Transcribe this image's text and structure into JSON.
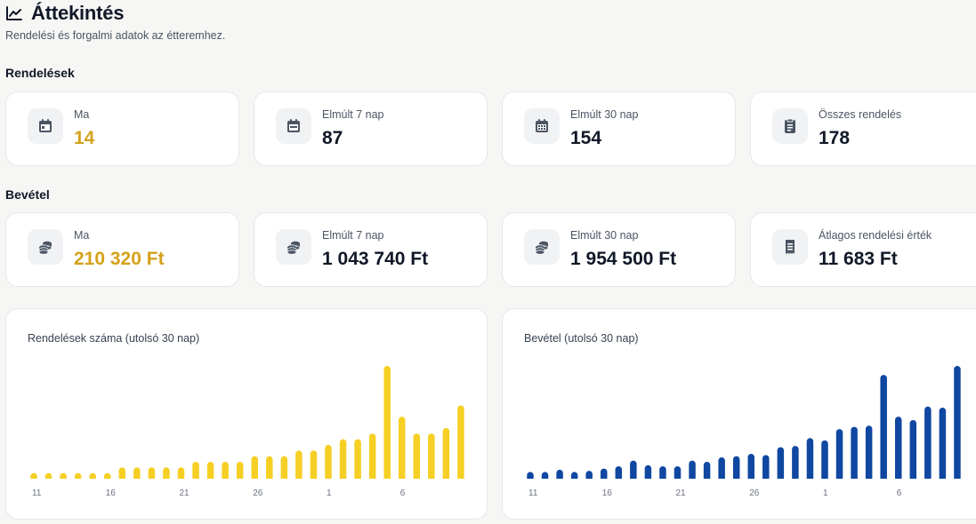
{
  "page": {
    "title": "Áttekintés",
    "subtitle": "Rendelési és forgalmi adatok az étteremhez."
  },
  "orders": {
    "title": "Rendelések",
    "cards": [
      {
        "label": "Ma",
        "value": "14",
        "icon": "calendar-day-icon",
        "accent": true
      },
      {
        "label": "Elmúlt 7 nap",
        "value": "87",
        "icon": "calendar-week-icon",
        "accent": false
      },
      {
        "label": "Elmúlt 30 nap",
        "value": "154",
        "icon": "calendar-month-icon",
        "accent": false
      },
      {
        "label": "Összes rendelés",
        "value": "178",
        "icon": "clipboard-icon",
        "accent": false
      }
    ]
  },
  "revenue": {
    "title": "Bevétel",
    "cards": [
      {
        "label": "Ma",
        "value": "210 320 Ft",
        "icon": "coins-icon",
        "accent": true
      },
      {
        "label": "Elmúlt 7 nap",
        "value": "1 043 740 Ft",
        "icon": "coins-icon",
        "accent": false
      },
      {
        "label": "Elmúlt 30 nap",
        "value": "1 954 500 Ft",
        "icon": "coins-icon",
        "accent": false
      },
      {
        "label": "Átlagos rendelési érték",
        "value": "11 683 Ft",
        "icon": "receipt-icon",
        "accent": false
      }
    ]
  },
  "colors": {
    "accent": "#d4a21a",
    "orders_bar": "#f6cf24",
    "revenue_bar": "#0f47a1",
    "tick_text": "#6b7280"
  },
  "chart_data": [
    {
      "type": "bar",
      "title": "Rendelések száma (utolsó 30 nap)",
      "categories": [
        "11",
        "12",
        "13",
        "14",
        "15",
        "16",
        "17",
        "18",
        "19",
        "20",
        "21",
        "22",
        "23",
        "24",
        "25",
        "26",
        "27",
        "28",
        "29",
        "30",
        "1",
        "2",
        "3",
        "4",
        "5",
        "6",
        "7",
        "8",
        "9",
        "10"
      ],
      "tick_labels": [
        "11",
        "16",
        "21",
        "26",
        "1",
        "6"
      ],
      "values": [
        0.5,
        0.5,
        0.5,
        0.5,
        0.5,
        0.5,
        1,
        1,
        1,
        1,
        1,
        1.5,
        1.5,
        1.5,
        1.5,
        2,
        2,
        2,
        2.5,
        2.5,
        3,
        3.5,
        3.5,
        4,
        10,
        5.5,
        4,
        4,
        4.5,
        6.5
      ],
      "ylim": [
        0,
        10
      ],
      "grid": false,
      "xlabel": "",
      "ylabel": ""
    },
    {
      "type": "bar",
      "title": "Bevétel (utolsó 30 nap)",
      "categories": [
        "11",
        "12",
        "13",
        "14",
        "15",
        "16",
        "17",
        "18",
        "19",
        "20",
        "21",
        "22",
        "23",
        "24",
        "25",
        "26",
        "27",
        "28",
        "29",
        "30",
        "1",
        "2",
        "3",
        "4",
        "5",
        "6",
        "7",
        "8",
        "9",
        "10"
      ],
      "tick_labels": [
        "11",
        "16",
        "21",
        "26",
        "1",
        "6"
      ],
      "values": [
        0.6,
        0.6,
        0.8,
        0.6,
        0.7,
        0.9,
        1.1,
        1.6,
        1.2,
        1.1,
        1.1,
        1.6,
        1.5,
        1.9,
        2.0,
        2.2,
        2.1,
        2.8,
        2.9,
        3.6,
        3.4,
        4.4,
        4.6,
        4.7,
        9.2,
        5.5,
        5.2,
        6.4,
        6.3,
        10
      ],
      "ylim": [
        0,
        10
      ],
      "grid": false,
      "xlabel": "",
      "ylabel": ""
    }
  ]
}
